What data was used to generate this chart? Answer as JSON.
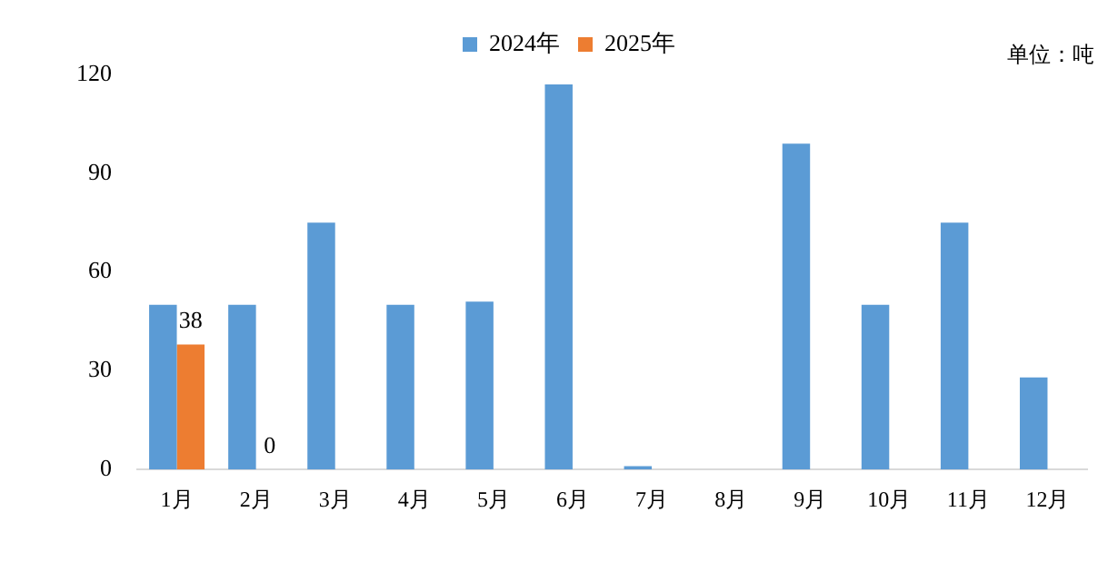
{
  "chart_data": {
    "type": "bar",
    "categories": [
      "1月",
      "2月",
      "3月",
      "4月",
      "5月",
      "6月",
      "7月",
      "8月",
      "9月",
      "10月",
      "11月",
      "12月"
    ],
    "series": [
      {
        "name": "2024年",
        "color": "#5b9bd5",
        "values": [
          50,
          50,
          75,
          50,
          51,
          117,
          1,
          0,
          99,
          50,
          75,
          28
        ]
      },
      {
        "name": "2025年",
        "color": "#ed7d31",
        "values": [
          38,
          0,
          null,
          null,
          null,
          null,
          null,
          null,
          null,
          null,
          null,
          null
        ],
        "value_labels": [
          "38",
          "0",
          null,
          null,
          null,
          null,
          null,
          null,
          null,
          null,
          null,
          null
        ]
      }
    ],
    "ylim": [
      0,
      120
    ],
    "yticks": [
      0,
      30,
      60,
      90,
      120
    ],
    "grid": false,
    "legend": "top",
    "annotations": [
      "单位：吨"
    ]
  }
}
